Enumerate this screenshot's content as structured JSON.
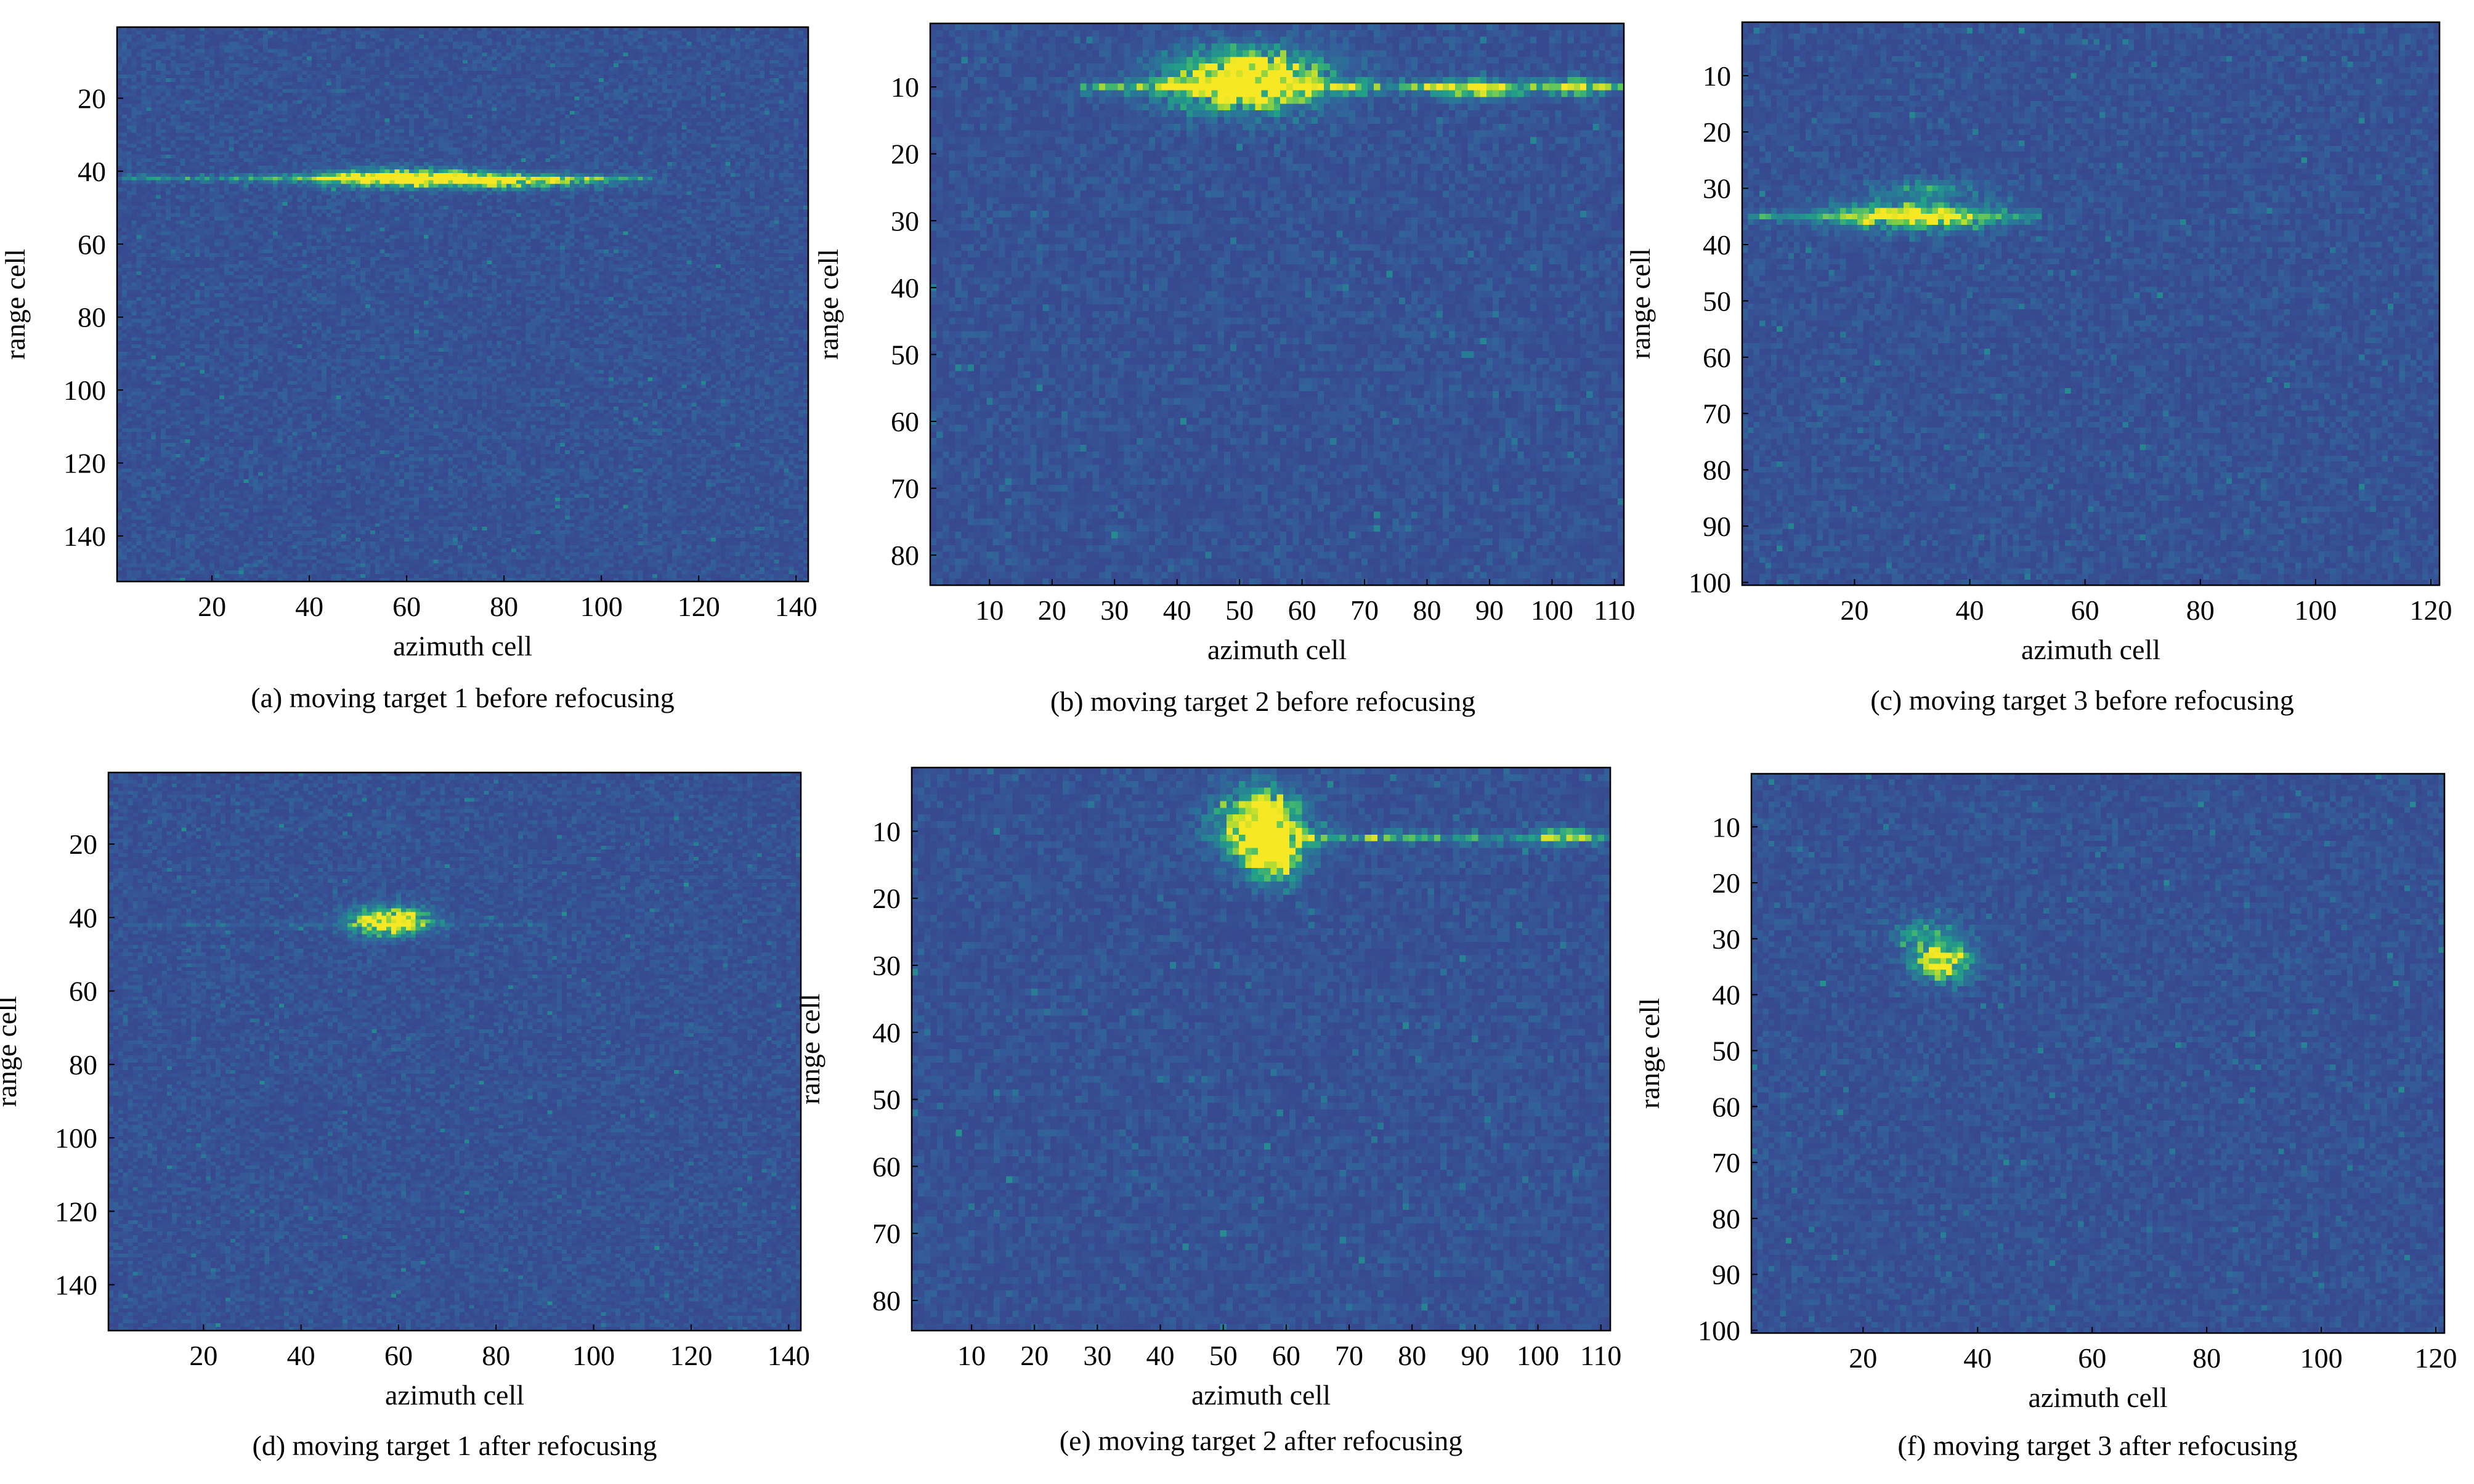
{
  "colors": {
    "background_low": "#3b4a8e",
    "noise_mid": "#2f6f96",
    "teal": "#2ea78c",
    "yellow": "#f0e62a"
  },
  "chart_data": [
    {
      "type": "heatmap",
      "caption": "(a) moving target 1 before refocusing",
      "xlabel": "azimuth cell",
      "ylabel": "range cell",
      "xlim": [
        1,
        142
      ],
      "ylim": [
        1,
        152
      ],
      "xticks": [
        20,
        40,
        60,
        80,
        100,
        120,
        140
      ],
      "yticks": [
        20,
        40,
        60,
        80,
        100,
        120,
        140
      ],
      "nx": 142,
      "ny": 152,
      "seed": 11,
      "streaks": [
        {
          "y": 42,
          "x0": 2,
          "x1": 110,
          "i": 0.38
        }
      ],
      "blobs": [
        {
          "x": 60,
          "y": 42,
          "sx": 13,
          "sy": 1.8,
          "i": 1.0
        },
        {
          "x": 85,
          "y": 43,
          "sx": 12,
          "sy": 1.4,
          "i": 0.55
        }
      ]
    },
    {
      "type": "heatmap",
      "caption": "(b) moving target 2 before refocusing",
      "xlabel": "azimuth cell",
      "ylabel": "range cell",
      "xlim": [
        1,
        111
      ],
      "ylim": [
        1,
        84
      ],
      "xticks": [
        10,
        20,
        30,
        40,
        50,
        60,
        70,
        80,
        90,
        100,
        110
      ],
      "yticks": [
        10,
        20,
        30,
        40,
        50,
        60,
        70,
        80
      ],
      "nx": 111,
      "ny": 84,
      "seed": 23,
      "streaks": [
        {
          "y": 10,
          "x0": 25,
          "x1": 111,
          "i": 0.45
        }
      ],
      "blobs": [
        {
          "x": 51,
          "y": 9,
          "sx": 9,
          "sy": 3.2,
          "i": 1.15
        },
        {
          "x": 88,
          "y": 10.5,
          "sx": 5,
          "sy": 1.0,
          "i": 0.55
        },
        {
          "x": 104,
          "y": 10,
          "sx": 3,
          "sy": 1.0,
          "i": 0.5
        }
      ]
    },
    {
      "type": "heatmap",
      "caption": "(c) moving target 3 before refocusing",
      "xlabel": "azimuth cell",
      "ylabel": "range cell",
      "xlim": [
        1,
        121
      ],
      "ylim": [
        1,
        100
      ],
      "xticks": [
        20,
        40,
        60,
        80,
        100,
        120
      ],
      "yticks": [
        10,
        20,
        30,
        40,
        50,
        60,
        70,
        80,
        90,
        100
      ],
      "nx": 121,
      "ny": 100,
      "seed": 37,
      "streaks": [
        {
          "y": 35,
          "x0": 2,
          "x1": 52,
          "i": 0.3
        }
      ],
      "blobs": [
        {
          "x": 30,
          "y": 35,
          "sx": 10,
          "sy": 1.8,
          "i": 0.8
        },
        {
          "x": 33,
          "y": 30,
          "sx": 7,
          "sy": 1.2,
          "i": 0.35
        }
      ]
    },
    {
      "type": "heatmap",
      "caption": "(d) moving target 1 after refocusing",
      "xlabel": "azimuth cell",
      "ylabel": "range cell",
      "xlim": [
        1,
        142
      ],
      "ylim": [
        1,
        152
      ],
      "xticks": [
        20,
        40,
        60,
        80,
        100,
        120,
        140
      ],
      "yticks": [
        20,
        40,
        60,
        80,
        100,
        120,
        140
      ],
      "nx": 142,
      "ny": 152,
      "seed": 41,
      "streaks": [
        {
          "y": 42,
          "x0": 10,
          "x1": 90,
          "i": 0.12
        }
      ],
      "blobs": [
        {
          "x": 58,
          "y": 41,
          "sx": 5.5,
          "sy": 2.6,
          "i": 1.15
        }
      ]
    },
    {
      "type": "heatmap",
      "caption": "(e) moving target 2 after refocusing",
      "xlabel": "azimuth cell",
      "ylabel": "range cell",
      "xlim": [
        1,
        111
      ],
      "ylim": [
        1,
        84
      ],
      "xticks": [
        10,
        20,
        30,
        40,
        50,
        60,
        70,
        80,
        90,
        100,
        110
      ],
      "yticks": [
        10,
        20,
        30,
        40,
        50,
        60,
        70,
        80
      ],
      "nx": 111,
      "ny": 84,
      "seed": 53,
      "streaks": [
        {
          "y": 11,
          "x0": 62,
          "x1": 111,
          "i": 0.4
        }
      ],
      "blobs": [
        {
          "x": 56,
          "y": 9,
          "sx": 4.5,
          "sy": 3.5,
          "i": 1.2
        },
        {
          "x": 58,
          "y": 14,
          "sx": 3,
          "sy": 2.5,
          "i": 0.8
        },
        {
          "x": 104,
          "y": 10.5,
          "sx": 2.5,
          "sy": 1.0,
          "i": 0.5
        }
      ]
    },
    {
      "type": "heatmap",
      "caption": "(f) moving target 3 after refocusing",
      "xlabel": "azimuth cell",
      "ylabel": "range cell",
      "xlim": [
        1,
        121
      ],
      "ylim": [
        1,
        100
      ],
      "xticks": [
        20,
        40,
        60,
        80,
        100,
        120
      ],
      "yticks": [
        10,
        20,
        30,
        40,
        50,
        60,
        70,
        80,
        90,
        100
      ],
      "nx": 121,
      "ny": 100,
      "seed": 67,
      "streaks": [],
      "blobs": [
        {
          "x": 34,
          "y": 34,
          "sx": 3.5,
          "sy": 2.3,
          "i": 0.95
        },
        {
          "x": 31,
          "y": 29,
          "sx": 4,
          "sy": 2,
          "i": 0.4
        }
      ]
    }
  ]
}
